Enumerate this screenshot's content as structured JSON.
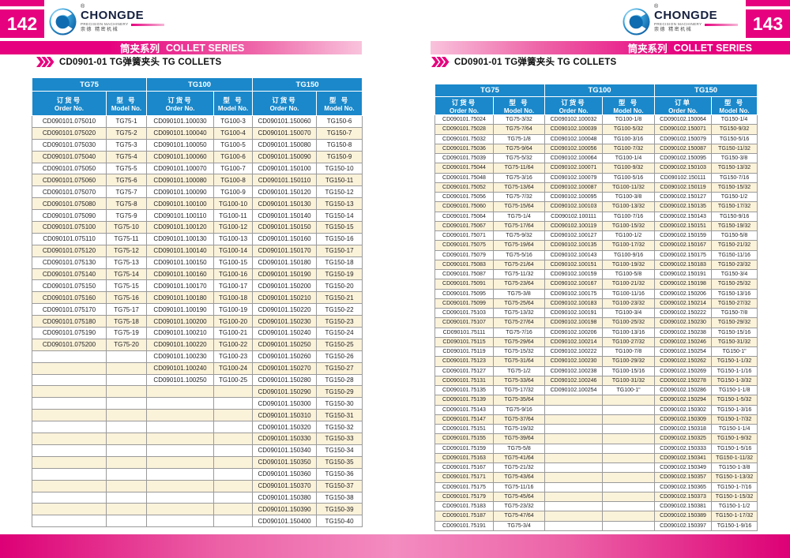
{
  "brand": {
    "name": "CHONGDE",
    "tagline": "PRECISION MACHINERY",
    "cn": "崇德 精密机械",
    "registered_mark": "®"
  },
  "series_banner": {
    "cn": "筒夹系列",
    "en": "COLLET SERIES"
  },
  "colors": {
    "magenta": "#e6017e",
    "banner_light_pink": "#f9c3dc",
    "table_header_blue": "#1a88ca",
    "row_stripe_cream": "#fbf2da",
    "grid_gray": "#9a9a9a"
  },
  "pages": [
    {
      "page_number": "142",
      "heading": "CD0901-01  TG弹簧夹头 TG COLLETS",
      "table": {
        "groups": [
          "TG75",
          "TG100",
          "TG150"
        ],
        "col_headers": [
          {
            "cn": "订货号",
            "en": "Order No."
          },
          {
            "cn": "型 号",
            "en": "Model  No."
          },
          {
            "cn": "订货号",
            "en": "Order No."
          },
          {
            "cn": "型 号",
            "en": "Model No."
          },
          {
            "cn": "订货号",
            "en": "Order No."
          },
          {
            "cn": "型 号",
            "en": "Model  No."
          }
        ],
        "rows": [
          [
            "CD090101.075010",
            "TG75-1",
            "CD090101.100030",
            "TG100-3",
            "CD090101.150060",
            "TG150-6"
          ],
          [
            "CD090101.075020",
            "TG75-2",
            "CD090101.100040",
            "TG100-4",
            "CD090101.150070",
            "TG150-7"
          ],
          [
            "CD090101.075030",
            "TG75-3",
            "CD090101.100050",
            "TG100-5",
            "CD090101.150080",
            "TG150-8"
          ],
          [
            "CD090101.075040",
            "TG75-4",
            "CD090101.100060",
            "TG100-6",
            "CD090101.150090",
            "TG150-9"
          ],
          [
            "CD090101.075050",
            "TG75-5",
            "CD090101.100070",
            "TG100-7",
            "CD090101.150100",
            "TG150-10"
          ],
          [
            "CD090101.075060",
            "TG75-6",
            "CD090101.100080",
            "TG100-8",
            "CD090101.150110",
            "TG150-11"
          ],
          [
            "CD090101.075070",
            "TG75-7",
            "CD090101.100090",
            "TG100-9",
            "CD090101.150120",
            "TG150-12"
          ],
          [
            "CD090101.075080",
            "TG75-8",
            "CD090101.100100",
            "TG100-10",
            "CD090101.150130",
            "TG150-13"
          ],
          [
            "CD090101.075090",
            "TG75-9",
            "CD090101.100110",
            "TG100-11",
            "CD090101.150140",
            "TG150-14"
          ],
          [
            "CD090101.075100",
            "TG75-10",
            "CD090101.100120",
            "TG100-12",
            "CD090101.150150",
            "TG150-15"
          ],
          [
            "CD090101.075110",
            "TG75-11",
            "CD090101.100130",
            "TG100-13",
            "CD090101.150160",
            "TG150-16"
          ],
          [
            "CD090101.075120",
            "TG75-12",
            "CD090101.100140",
            "TG100-14",
            "CD090101.150170",
            "TG150-17"
          ],
          [
            "CD090101.075130",
            "TG75-13",
            "CD090101.100150",
            "TG100-15",
            "CD090101.150180",
            "TG150-18"
          ],
          [
            "CD090101.075140",
            "TG75-14",
            "CD090101.100160",
            "TG100-16",
            "CD090101.150190",
            "TG150-19"
          ],
          [
            "CD090101.075150",
            "TG75-15",
            "CD090101.100170",
            "TG100-17",
            "CD090101.150200",
            "TG150-20"
          ],
          [
            "CD090101.075160",
            "TG75-16",
            "CD090101.100180",
            "TG100-18",
            "CD090101.150210",
            "TG150-21"
          ],
          [
            "CD090101.075170",
            "TG75-17",
            "CD090101.100190",
            "TG100-19",
            "CD090101.150220",
            "TG150-22"
          ],
          [
            "CD090101.075180",
            "TG75-18",
            "CD090101.100200",
            "TG100-20",
            "CD090101.150230",
            "TG150-23"
          ],
          [
            "CD090101.075190",
            "TG75-19",
            "CD090101.100210",
            "TG100-21",
            "CD090101.150240",
            "TG150-24"
          ],
          [
            "CD090101.075200",
            "TG75-20",
            "CD090101.100220",
            "TG100-22",
            "CD090101.150250",
            "TG150-25"
          ],
          [
            "",
            "",
            "CD090101.100230",
            "TG100-23",
            "CD090101.150260",
            "TG150-26"
          ],
          [
            "",
            "",
            "CD090101.100240",
            "TG100-24",
            "CD090101.150270",
            "TG150-27"
          ],
          [
            "",
            "",
            "CD090101.100250",
            "TG100-25",
            "CD090101.150280",
            "TG150-28"
          ],
          [
            "",
            "",
            "",
            "",
            "CD090101.150290",
            "TG150-29"
          ],
          [
            "",
            "",
            "",
            "",
            "CD090101.150300",
            "TG150-30"
          ],
          [
            "",
            "",
            "",
            "",
            "CD090101.150310",
            "TG150-31"
          ],
          [
            "",
            "",
            "",
            "",
            "CD090101.150320",
            "TG150-32"
          ],
          [
            "",
            "",
            "",
            "",
            "CD090101.150330",
            "TG150-33"
          ],
          [
            "",
            "",
            "",
            "",
            "CD090101.150340",
            "TG150-34"
          ],
          [
            "",
            "",
            "",
            "",
            "CD090101.150350",
            "TG150-35"
          ],
          [
            "",
            "",
            "",
            "",
            "CD090101.150360",
            "TG150-36"
          ],
          [
            "",
            "",
            "",
            "",
            "CD090101.150370",
            "TG150-37"
          ],
          [
            "",
            "",
            "",
            "",
            "CD090101.150380",
            "TG150-38"
          ],
          [
            "",
            "",
            "",
            "",
            "CD090101.150390",
            "TG150-39"
          ],
          [
            "",
            "",
            "",
            "",
            "CD090101.150400",
            "TG150-40"
          ]
        ]
      }
    },
    {
      "page_number": "143",
      "heading": "CD0901-01  TG弹簧夹头 TG COLLETS",
      "table": {
        "groups": [
          "TG75",
          "TG100",
          "TG150"
        ],
        "col_headers": [
          {
            "cn": "订货号",
            "en": "Order No."
          },
          {
            "cn": "型 号",
            "en": "Model  No."
          },
          {
            "cn": "订货号",
            "en": "Order No."
          },
          {
            "cn": "型 号",
            "en": "Model No."
          },
          {
            "cn": "订单",
            "en": "Order No."
          },
          {
            "cn": "型 号",
            "en": "Model  No."
          }
        ],
        "rows": [
          [
            "CD090101.75024",
            "TG75-3/32",
            "CD090102.100032",
            "TG100-1/8",
            "CD090102.150064",
            "TG150-1/4"
          ],
          [
            "CD090101.75028",
            "TG75-7/64",
            "CD090102.100039",
            "TG100-5/32",
            "CD090102.150071",
            "TG150-9/32"
          ],
          [
            "CD090101.75032",
            "TG75-1/8",
            "CD090102.100048",
            "TG100-3/16",
            "CD090102.150079",
            "TG150-5/16"
          ],
          [
            "CD090101.75036",
            "TG75-9/64",
            "CD090102.100056",
            "TG100-7/32",
            "CD090102.150087",
            "TG150-11/32"
          ],
          [
            "CD090101.75039",
            "TG75-5/32",
            "CD090102.100064",
            "TG100-1/4",
            "CD090102.150095",
            "TG150-3/8"
          ],
          [
            "CD090101.75044",
            "TG75-11/64",
            "CD090102.100071",
            "TG100-9/32",
            "CD090102.150103",
            "TG150-13/32"
          ],
          [
            "CD090101.75048",
            "TG75-3/16",
            "CD090102.100079",
            "TG100-5/16",
            "CD090102.150111",
            "TG150-7/16"
          ],
          [
            "CD090101.75052",
            "TG75-13/64",
            "CD090102.100087",
            "TG100-11/32",
            "CD090102.150119",
            "TG150-15/32"
          ],
          [
            "CD090101.75056",
            "TG75-7/32",
            "CD090102.100095",
            "TG100-3/8",
            "CD090102.150127",
            "TG150-1/2"
          ],
          [
            "CD090101.75060",
            "TG75-15/64",
            "CD090102.100103",
            "TG100-13/32",
            "CD090102.150135",
            "TG150-17/32"
          ],
          [
            "CD090101.75064",
            "TG75-1/4",
            "CD090102.100111",
            "TG100-7/16",
            "CD090102.150143",
            "TG150-9/16"
          ],
          [
            "CD090101.75067",
            "TG75-17/64",
            "CD090102.100119",
            "TG100-15/32",
            "CD090102.150151",
            "TG150-19/32"
          ],
          [
            "CD090101.75071",
            "TG75-9/32",
            "CD090102.100127",
            "TG100-1/2",
            "CD090102.150159",
            "TG150-5/8"
          ],
          [
            "CD090101.75075",
            "TG75-19/64",
            "CD090102.100135",
            "TG100-17/32",
            "CD090102.150167",
            "TG150-21/32"
          ],
          [
            "CD090101.75079",
            "TG75-5/16",
            "CD090102.100143",
            "TG100-9/16",
            "CD090102.150175",
            "TG150-11/16"
          ],
          [
            "CD090101.75083",
            "TG75-21/64",
            "CD090102.100151",
            "TG100-19/32",
            "CD090102.150183",
            "TG150-23/32"
          ],
          [
            "CD090101.75087",
            "TG75-11/32",
            "CD090102.100159",
            "TG100-5/8",
            "CD090102.150191",
            "TG150-3/4"
          ],
          [
            "CD090101.75091",
            "TG75-23/64",
            "CD090102.100167",
            "TG100-21/32",
            "CD090102.150198",
            "TG150-25/32"
          ],
          [
            "CD090101.75095",
            "TG75-3/8",
            "CD090102.100175",
            "TG100-11/16",
            "CD090102.150206",
            "TG150-13/16"
          ],
          [
            "CD090101.75099",
            "TG75-25/64",
            "CD090102.100183",
            "TG100-23/32",
            "CD090102.150214",
            "TG150-27/32"
          ],
          [
            "CD090101.75103",
            "TG75-13/32",
            "CD090102.100191",
            "TG100-3/4",
            "CD090102.150222",
            "TG150-7/8"
          ],
          [
            "CD090101.75107",
            "TG75-27/64",
            "CD090102.100198",
            "TG100-25/32",
            "CD090102.150230",
            "TG150-29/32"
          ],
          [
            "CD090101.75111",
            "TG75-7/16",
            "CD090102.100206",
            "TG100-13/16",
            "CD090102.150238",
            "TG150-15/16"
          ],
          [
            "CD090101.75115",
            "TG75-29/64",
            "CD090102.100214",
            "TG100-27/32",
            "CD090102.150246",
            "TG150-31/32"
          ],
          [
            "CD090101.75119",
            "TG75-15/32",
            "CD090102.100222",
            "TG100-7/8",
            "CD090102.150254",
            "TG150-1\""
          ],
          [
            "CD090101.75123",
            "TG75-31/64",
            "CD090102.100230",
            "TG100-29/32",
            "CD090102.150262",
            "TG150-1-1/32"
          ],
          [
            "CD090101.75127",
            "TG75-1/2",
            "CD090102.100238",
            "TG100-15/16",
            "CD090102.150269",
            "TG150-1-1/16"
          ],
          [
            "CD090101.75131",
            "TG75-33/64",
            "CD090102.100246",
            "TG100-31/32",
            "CD090102.150278",
            "TG150-1-3/32"
          ],
          [
            "CD090101.75135",
            "TG75-17/32",
            "CD090102.100254",
            "TG100-1\"",
            "CD090102.150286",
            "TG150-1-1/8"
          ],
          [
            "CD090101.75139",
            "TG75-35/64",
            "",
            "",
            "CD090102.150294",
            "TG150-1-5/32"
          ],
          [
            "CD090101.75143",
            "TG75-9/16",
            "",
            "",
            "CD090102.150302",
            "TG150-1-3/16"
          ],
          [
            "CD090101.75147",
            "TG75-37/64",
            "",
            "",
            "CD090102.150309",
            "TG150-1-7/32"
          ],
          [
            "CD090101.75151",
            "TG75-19/32",
            "",
            "",
            "CD090102.150318",
            "TG150-1-1/4"
          ],
          [
            "CD090101.75155",
            "TG75-39/64",
            "",
            "",
            "CD090102.150325",
            "TG150-1-9/32"
          ],
          [
            "CD090101.75159",
            "TG75-5/8",
            "",
            "",
            "CD090102.150333",
            "TG150-1-5/16"
          ],
          [
            "CD090101.75163",
            "TG75-41/64",
            "",
            "",
            "CD090102.150341",
            "TG150-1-11/32"
          ],
          [
            "CD090101.75167",
            "TG75-21/32",
            "",
            "",
            "CD090102.150349",
            "TG150-1-3/8"
          ],
          [
            "CD090101.75171",
            "TG75-43/64",
            "",
            "",
            "CD090102.150357",
            "TG150-1-13/32"
          ],
          [
            "CD090101.75175",
            "TG75-11/16",
            "",
            "",
            "CD090102.150365",
            "TG150-1-7/16"
          ],
          [
            "CD090101.75179",
            "TG75-45/64",
            "",
            "",
            "CD090102.150373",
            "TG150-1-15/32"
          ],
          [
            "CD090101.75183",
            "TG75-23/32",
            "",
            "",
            "CD090102.150381",
            "TG150-1-1/2"
          ],
          [
            "CD090101.75187",
            "TG75-47/64",
            "",
            "",
            "CD090102.150389",
            "TG150-1-17/32"
          ],
          [
            "CD090101.75191",
            "TG75-3/4",
            "",
            "",
            "CD090102.150397",
            "TG150-1-9/16"
          ]
        ]
      }
    }
  ]
}
